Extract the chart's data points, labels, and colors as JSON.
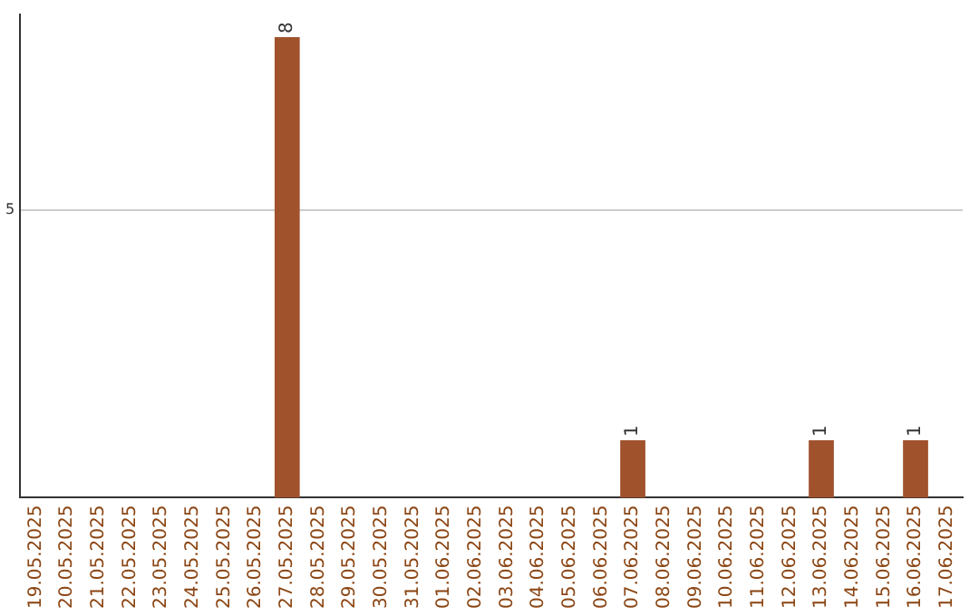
{
  "chart_data": {
    "type": "bar",
    "categories": [
      "19.05.2025",
      "20.05.2025",
      "21.05.2025",
      "22.05.2025",
      "23.05.2025",
      "24.05.2025",
      "25.05.2025",
      "26.05.2025",
      "27.05.2025",
      "28.05.2025",
      "29.05.2025",
      "30.05.2025",
      "31.05.2025",
      "01.06.2025",
      "02.06.2025",
      "03.06.2025",
      "04.06.2025",
      "05.06.2025",
      "06.06.2025",
      "07.06.2025",
      "08.06.2025",
      "09.06.2025",
      "10.06.2025",
      "11.06.2025",
      "12.06.2025",
      "13.06.2025",
      "14.06.2025",
      "15.06.2025",
      "16.06.2025",
      "17.06.2025"
    ],
    "values": [
      0,
      0,
      0,
      0,
      0,
      0,
      0,
      0,
      8,
      0,
      0,
      0,
      0,
      0,
      0,
      0,
      0,
      0,
      0,
      1,
      0,
      0,
      0,
      0,
      0,
      1,
      0,
      0,
      1,
      0
    ],
    "value_labels": [
      null,
      null,
      null,
      null,
      null,
      null,
      null,
      null,
      "8",
      null,
      null,
      null,
      null,
      null,
      null,
      null,
      null,
      null,
      null,
      "1",
      null,
      null,
      null,
      null,
      null,
      "1",
      null,
      null,
      "1",
      null
    ],
    "color": "#a0522d",
    "ylim": [
      0,
      8.4
    ],
    "yticks": [
      5
    ],
    "grid": "y",
    "legend": false
  }
}
